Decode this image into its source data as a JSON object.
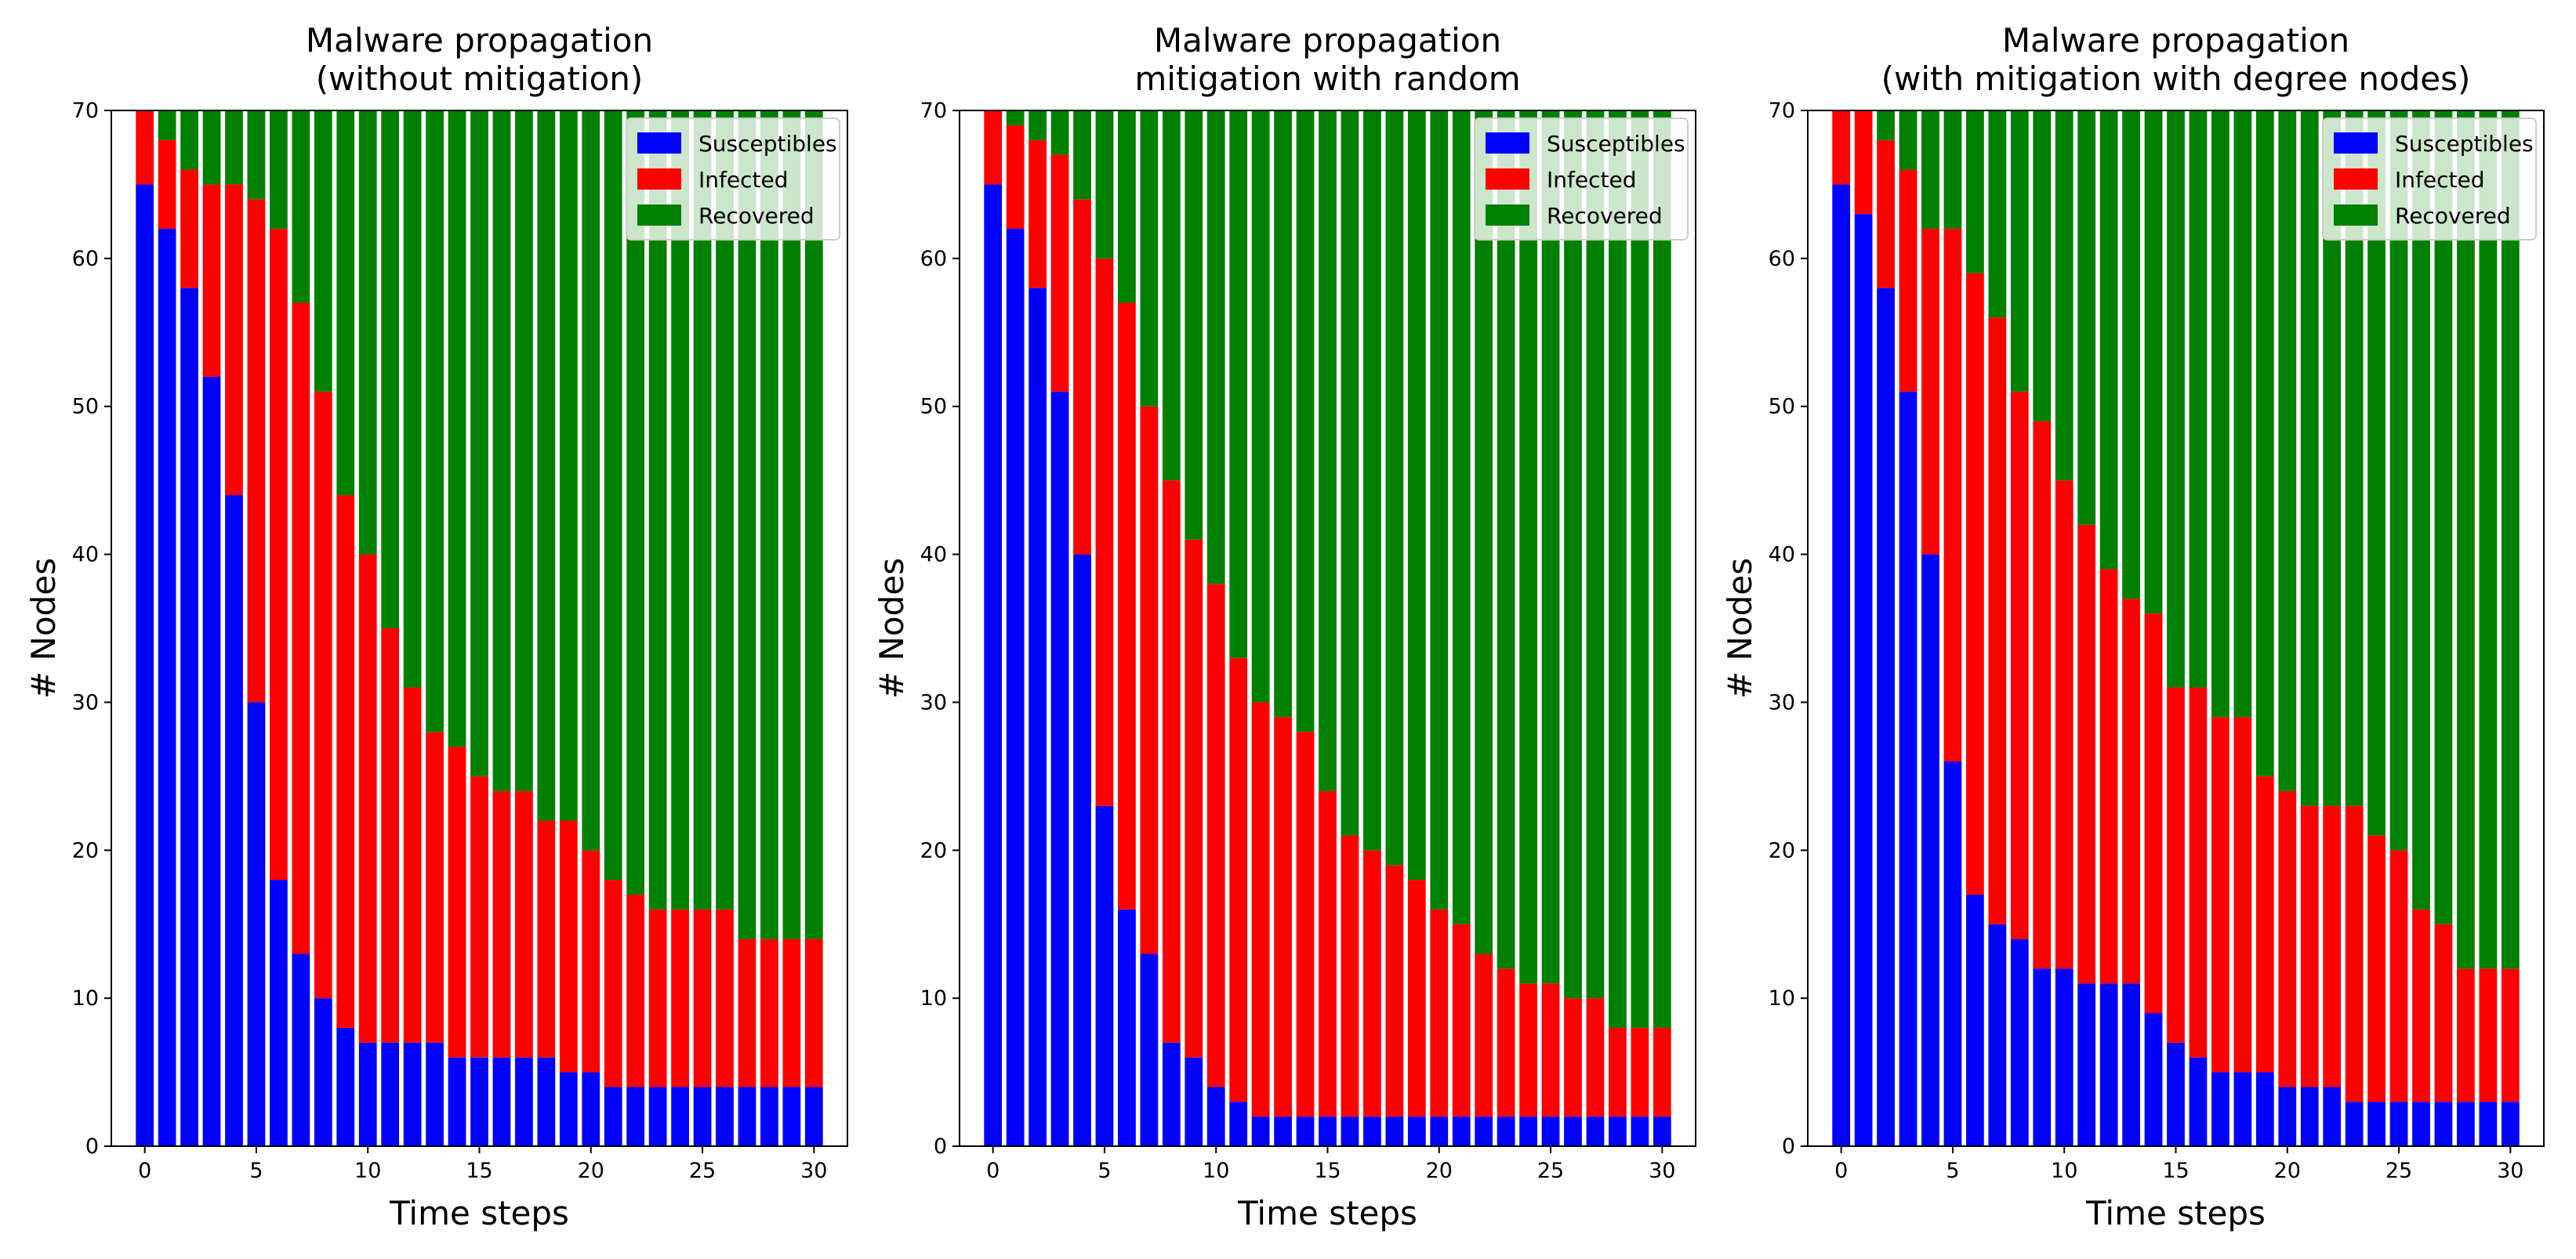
{
  "chart_data": [
    {
      "type": "bar",
      "stacked": true,
      "title": "Malware propagation\n(without mitigation)",
      "xlabel": "Time steps",
      "ylabel": "# Nodes",
      "xlim": [
        -1.5,
        31.5
      ],
      "ylim": [
        0,
        70
      ],
      "xticks": [
        0,
        5,
        10,
        15,
        20,
        25,
        30
      ],
      "yticks": [
        0,
        10,
        20,
        30,
        40,
        50,
        60,
        70
      ],
      "legend_position": "top-right",
      "x": [
        0,
        1,
        2,
        3,
        4,
        5,
        6,
        7,
        8,
        9,
        10,
        11,
        12,
        13,
        14,
        15,
        16,
        17,
        18,
        19,
        20,
        21,
        22,
        23,
        24,
        25,
        26,
        27,
        28,
        29,
        30
      ],
      "series": [
        {
          "name": "Susceptibles",
          "color": "#0000ff",
          "values": [
            65,
            62,
            58,
            52,
            44,
            30,
            18,
            13,
            10,
            8,
            7,
            7,
            7,
            7,
            6,
            6,
            6,
            6,
            6,
            5,
            5,
            4,
            4,
            4,
            4,
            4,
            4,
            4,
            4,
            4,
            4
          ]
        },
        {
          "name": "Infected",
          "color": "#ff0000",
          "values": [
            5,
            6,
            8,
            13,
            21,
            34,
            44,
            44,
            41,
            36,
            33,
            28,
            24,
            21,
            21,
            19,
            18,
            18,
            16,
            17,
            15,
            14,
            13,
            12,
            12,
            12,
            12,
            10,
            10,
            10,
            10
          ]
        },
        {
          "name": "Recovered",
          "color": "#008000",
          "values": [
            0,
            2,
            4,
            5,
            5,
            6,
            8,
            13,
            19,
            26,
            30,
            35,
            39,
            42,
            43,
            45,
            46,
            46,
            48,
            48,
            50,
            52,
            53,
            54,
            54,
            54,
            54,
            56,
            56,
            56,
            56
          ]
        }
      ]
    },
    {
      "type": "bar",
      "stacked": true,
      "title": "Malware propagation\nmitigation with random",
      "xlabel": "Time steps",
      "ylabel": "# Nodes",
      "xlim": [
        -1.5,
        31.5
      ],
      "ylim": [
        0,
        70
      ],
      "xticks": [
        0,
        5,
        10,
        15,
        20,
        25,
        30
      ],
      "yticks": [
        0,
        10,
        20,
        30,
        40,
        50,
        60,
        70
      ],
      "legend_position": "top-right",
      "x": [
        0,
        1,
        2,
        3,
        4,
        5,
        6,
        7,
        8,
        9,
        10,
        11,
        12,
        13,
        14,
        15,
        16,
        17,
        18,
        19,
        20,
        21,
        22,
        23,
        24,
        25,
        26,
        27,
        28,
        29,
        30
      ],
      "series": [
        {
          "name": "Susceptibles",
          "color": "#0000ff",
          "values": [
            65,
            62,
            58,
            51,
            40,
            23,
            16,
            13,
            7,
            6,
            4,
            3,
            2,
            2,
            2,
            2,
            2,
            2,
            2,
            2,
            2,
            2,
            2,
            2,
            2,
            2,
            2,
            2,
            2,
            2,
            2
          ]
        },
        {
          "name": "Infected",
          "color": "#ff0000",
          "values": [
            5,
            7,
            10,
            16,
            24,
            37,
            41,
            37,
            38,
            35,
            34,
            30,
            28,
            27,
            26,
            22,
            19,
            18,
            17,
            16,
            14,
            13,
            11,
            10,
            9,
            9,
            8,
            8,
            6,
            6,
            6
          ]
        },
        {
          "name": "Recovered",
          "color": "#008000",
          "values": [
            0,
            1,
            2,
            3,
            6,
            10,
            13,
            20,
            25,
            29,
            32,
            37,
            40,
            41,
            42,
            46,
            49,
            50,
            51,
            52,
            54,
            55,
            57,
            58,
            59,
            59,
            60,
            60,
            62,
            62,
            62
          ]
        }
      ]
    },
    {
      "type": "bar",
      "stacked": true,
      "title": "Malware propagation\n(with mitigation with degree nodes)",
      "xlabel": "Time steps",
      "ylabel": "# Nodes",
      "xlim": [
        -1.5,
        31.5
      ],
      "ylim": [
        0,
        70
      ],
      "xticks": [
        0,
        5,
        10,
        15,
        20,
        25,
        30
      ],
      "yticks": [
        0,
        10,
        20,
        30,
        40,
        50,
        60,
        70
      ],
      "legend_position": "top-right",
      "x": [
        0,
        1,
        2,
        3,
        4,
        5,
        6,
        7,
        8,
        9,
        10,
        11,
        12,
        13,
        14,
        15,
        16,
        17,
        18,
        19,
        20,
        21,
        22,
        23,
        24,
        25,
        26,
        27,
        28,
        29,
        30
      ],
      "series": [
        {
          "name": "Susceptibles",
          "color": "#0000ff",
          "values": [
            65,
            63,
            58,
            51,
            40,
            26,
            17,
            15,
            14,
            12,
            12,
            11,
            11,
            11,
            9,
            7,
            6,
            5,
            5,
            5,
            4,
            4,
            4,
            3,
            3,
            3,
            3,
            3,
            3,
            3,
            3
          ]
        },
        {
          "name": "Infected",
          "color": "#ff0000",
          "values": [
            5,
            7,
            10,
            15,
            22,
            36,
            42,
            41,
            37,
            37,
            33,
            31,
            28,
            26,
            27,
            24,
            25,
            24,
            24,
            20,
            20,
            19,
            19,
            20,
            18,
            17,
            13,
            12,
            9,
            9,
            9
          ]
        },
        {
          "name": "Recovered",
          "color": "#008000",
          "values": [
            0,
            0,
            2,
            4,
            8,
            8,
            11,
            14,
            19,
            21,
            25,
            28,
            31,
            33,
            34,
            39,
            39,
            41,
            41,
            45,
            46,
            47,
            47,
            47,
            49,
            50,
            54,
            55,
            58,
            58,
            58
          ]
        }
      ]
    }
  ]
}
